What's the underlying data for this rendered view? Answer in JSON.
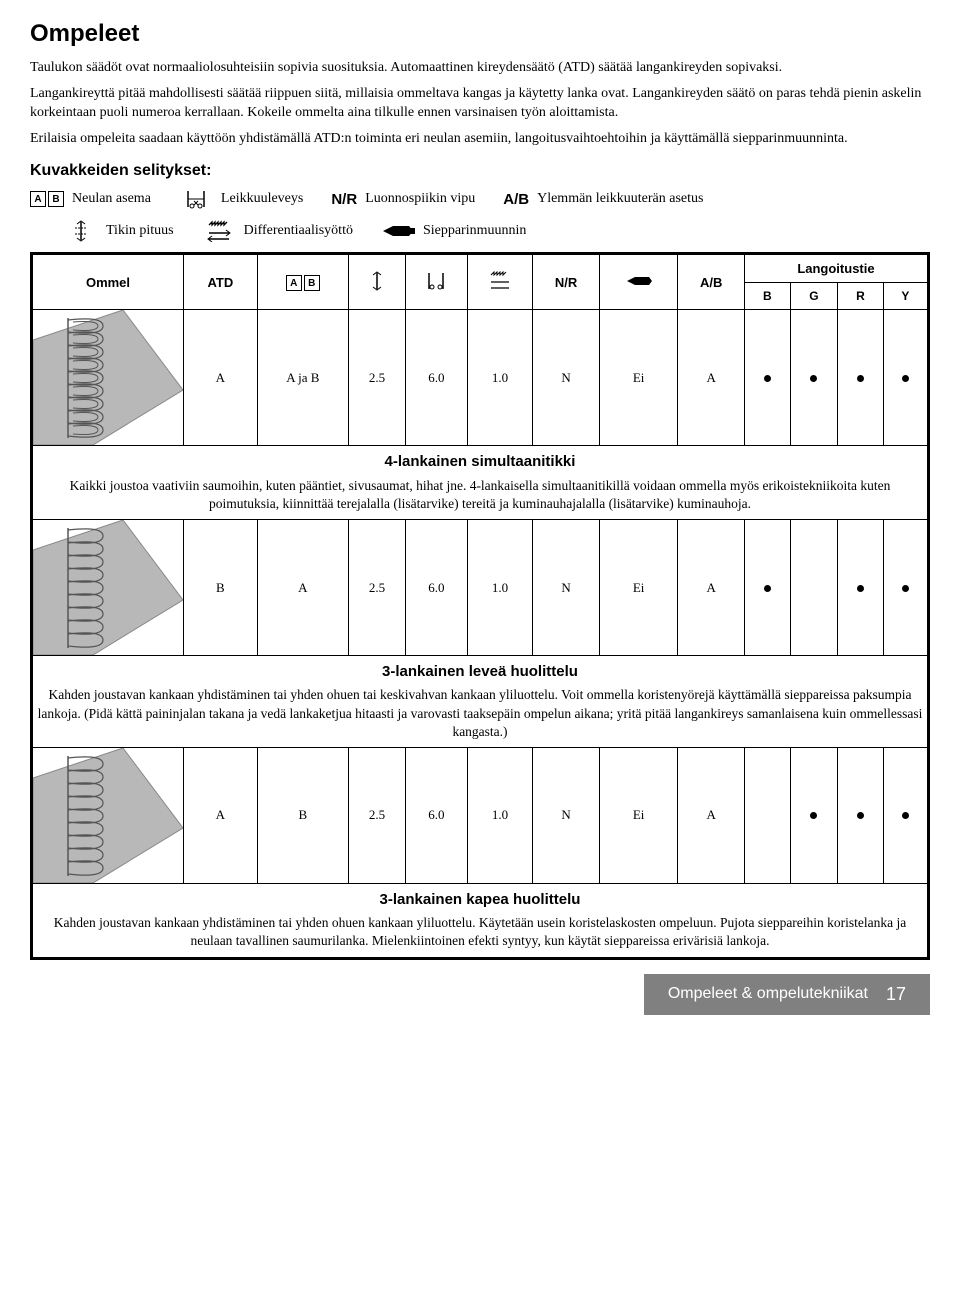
{
  "title": "Ompeleet",
  "intro": [
    "Taulukon säädöt ovat normaaliolosuhteisiin sopivia suosituksia. Automaattinen kireydensäätö (ATD) säätää langankireyden sopivaksi.",
    "Langankireyttä pitää mahdollisesti säätää riippuen siitä, millaisia ommeltava kangas ja käytetty lanka ovat. Langankireyden säätö on paras tehdä pienin askelin korkeintaan puoli numeroa kerrallaan. Kokeile ommelta aina tilkulle ennen varsinaisen työn aloittamista.",
    "Erilaisia ompeleita saadaan käyttöön yhdistämällä ATD:n toiminta eri neulan asemiin, langoitusvaihtoehtoihin ja käyttämällä siepparinmuunninta."
  ],
  "legend_title": "Kuvakkeiden selitykset:",
  "legend": {
    "needle_pos": "Neulan asema",
    "cut_width": "Leikkuuleveys",
    "nr_label": "N/R",
    "nr_desc": "Luonnospiikin vipu",
    "ab_label": "A/B",
    "ab_desc": "Ylemmän leikkuuterän asetus",
    "stitch_len": "Tikin pituus",
    "diff_feed": "Differentiaalisyöttö",
    "looper": "Siepparinmuunnin"
  },
  "table": {
    "headers": {
      "ommel": "Ommel",
      "atd": "ATD",
      "nr": "N/R",
      "ab": "A/B",
      "thread": "Langoitustie",
      "b": "B",
      "g": "G",
      "r": "R",
      "y": "Y"
    },
    "rows": [
      {
        "atd": "A",
        "needle": "A ja B",
        "len": "2.5",
        "cut": "6.0",
        "diff": "1.0",
        "nr": "N",
        "looper": "Ei",
        "ab": "A",
        "b": true,
        "g": true,
        "r": true,
        "y": true
      },
      {
        "atd": "B",
        "needle": "A",
        "len": "2.5",
        "cut": "6.0",
        "diff": "1.0",
        "nr": "N",
        "looper": "Ei",
        "ab": "A",
        "b": true,
        "g": false,
        "r": true,
        "y": true
      },
      {
        "atd": "A",
        "needle": "B",
        "len": "2.5",
        "cut": "6.0",
        "diff": "1.0",
        "nr": "N",
        "looper": "Ei",
        "ab": "A",
        "b": false,
        "g": true,
        "r": true,
        "y": true
      }
    ],
    "descriptions": [
      {
        "title": "4-lankainen simultaanitikki",
        "body": "Kaikki joustoa vaativiin saumoihin, kuten pääntiet, sivusaumat, hihat jne. 4-lankaisella simultaanitikillä voidaan ommella myös erikoistekniikoita kuten poimutuksia, kiinnittää terejalalla (lisätarvike) tereitä ja kuminauhajalalla (lisätarvike) kuminauhoja."
      },
      {
        "title": "3-lankainen leveä huolittelu",
        "body": "Kahden joustavan kankaan yhdistäminen tai yhden ohuen tai keskivahvan kankaan yliluottelu. Voit ommella koristenyörejä käyttämällä sieppareissa paksumpia lankoja. (Pidä kättä paininjalan takana ja vedä lankaketjua hitaasti ja varovasti taaksepäin ompelun aikana; yritä pitää langankireys samanlaisena kuin ommellessasi kangasta.)"
      },
      {
        "title": "3-lankainen kapea huolittelu",
        "body": "Kahden joustavan kankaan yhdistäminen tai yhden ohuen kankaan yliluottelu. Käytetään usein koristelaskosten ompeluun. Pujota sieppareihin koristelanka ja neulaan tavallinen saumurilanka. Mielenkiintoinen efekti syntyy, kun käytät sieppareissa erivärisiä lankoja."
      }
    ]
  },
  "footer": {
    "label": "Ompeleet & ompelutekniikat",
    "page": "17"
  },
  "colors": {
    "footer_bg": "#808080",
    "stitch_fill": "#b8b8b8",
    "stitch_stroke": "#555555"
  }
}
